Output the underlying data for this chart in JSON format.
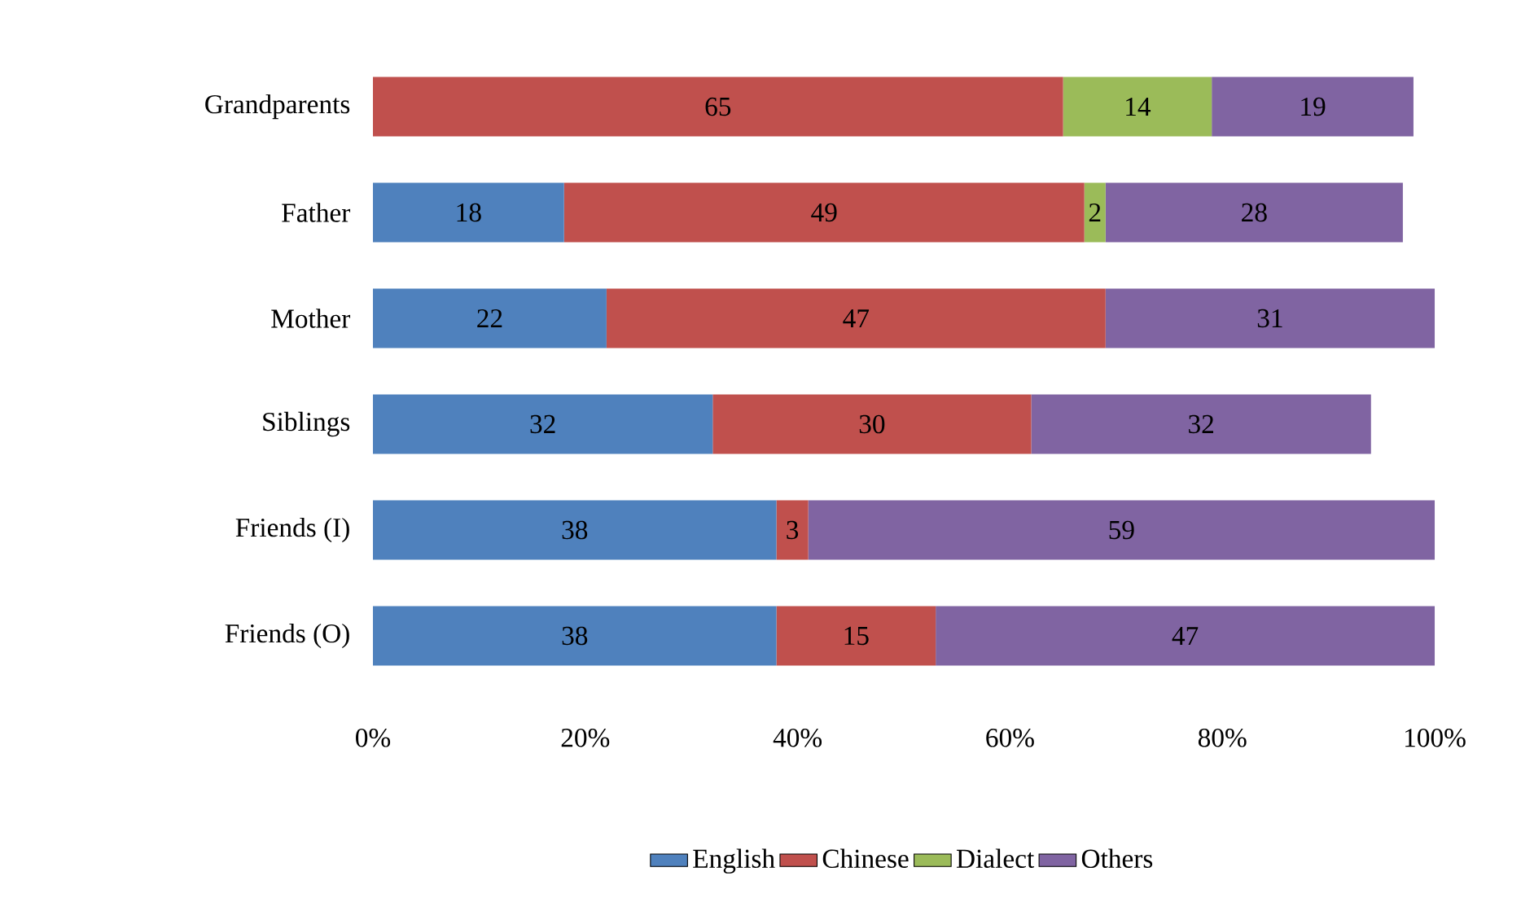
{
  "chart_data": {
    "type": "bar",
    "orientation": "horizontal",
    "stacked": true,
    "categories": [
      "Grandparents",
      "Father",
      "Mother",
      "Siblings",
      "Friends (I)",
      "Friends (O)"
    ],
    "series": [
      {
        "name": "English",
        "color": "#4f81bd",
        "values": [
          null,
          18,
          22,
          32,
          38,
          38
        ],
        "value_labels": [
          null,
          "18",
          "22",
          "32",
          "38",
          "38"
        ]
      },
      {
        "name": "Chinese",
        "color": "#c0504d",
        "values": [
          65,
          49,
          47,
          30,
          3,
          15
        ],
        "value_labels": [
          "65",
          "49",
          "47",
          "30",
          "3",
          "15"
        ]
      },
      {
        "name": "Dialect",
        "color": "#9bbb59",
        "values": [
          14,
          2,
          null,
          null,
          null,
          null
        ],
        "value_labels": [
          "14",
          "2",
          null,
          null,
          null,
          null
        ]
      },
      {
        "name": "Others",
        "color": "#8064a2",
        "values": [
          19,
          28,
          31,
          32,
          59,
          47
        ],
        "value_labels": [
          "19",
          "28",
          "31",
          "32",
          "59",
          "47"
        ]
      }
    ],
    "xlim": [
      0,
      100
    ],
    "xticks": [
      {
        "value": 0,
        "label": "0%"
      },
      {
        "value": 20,
        "label": "20%"
      },
      {
        "value": 40,
        "label": "40%"
      },
      {
        "value": 60,
        "label": "60%"
      },
      {
        "value": 80,
        "label": "80%"
      },
      {
        "value": 100,
        "label": "100%"
      }
    ],
    "grid": false,
    "legend": "bottom"
  }
}
